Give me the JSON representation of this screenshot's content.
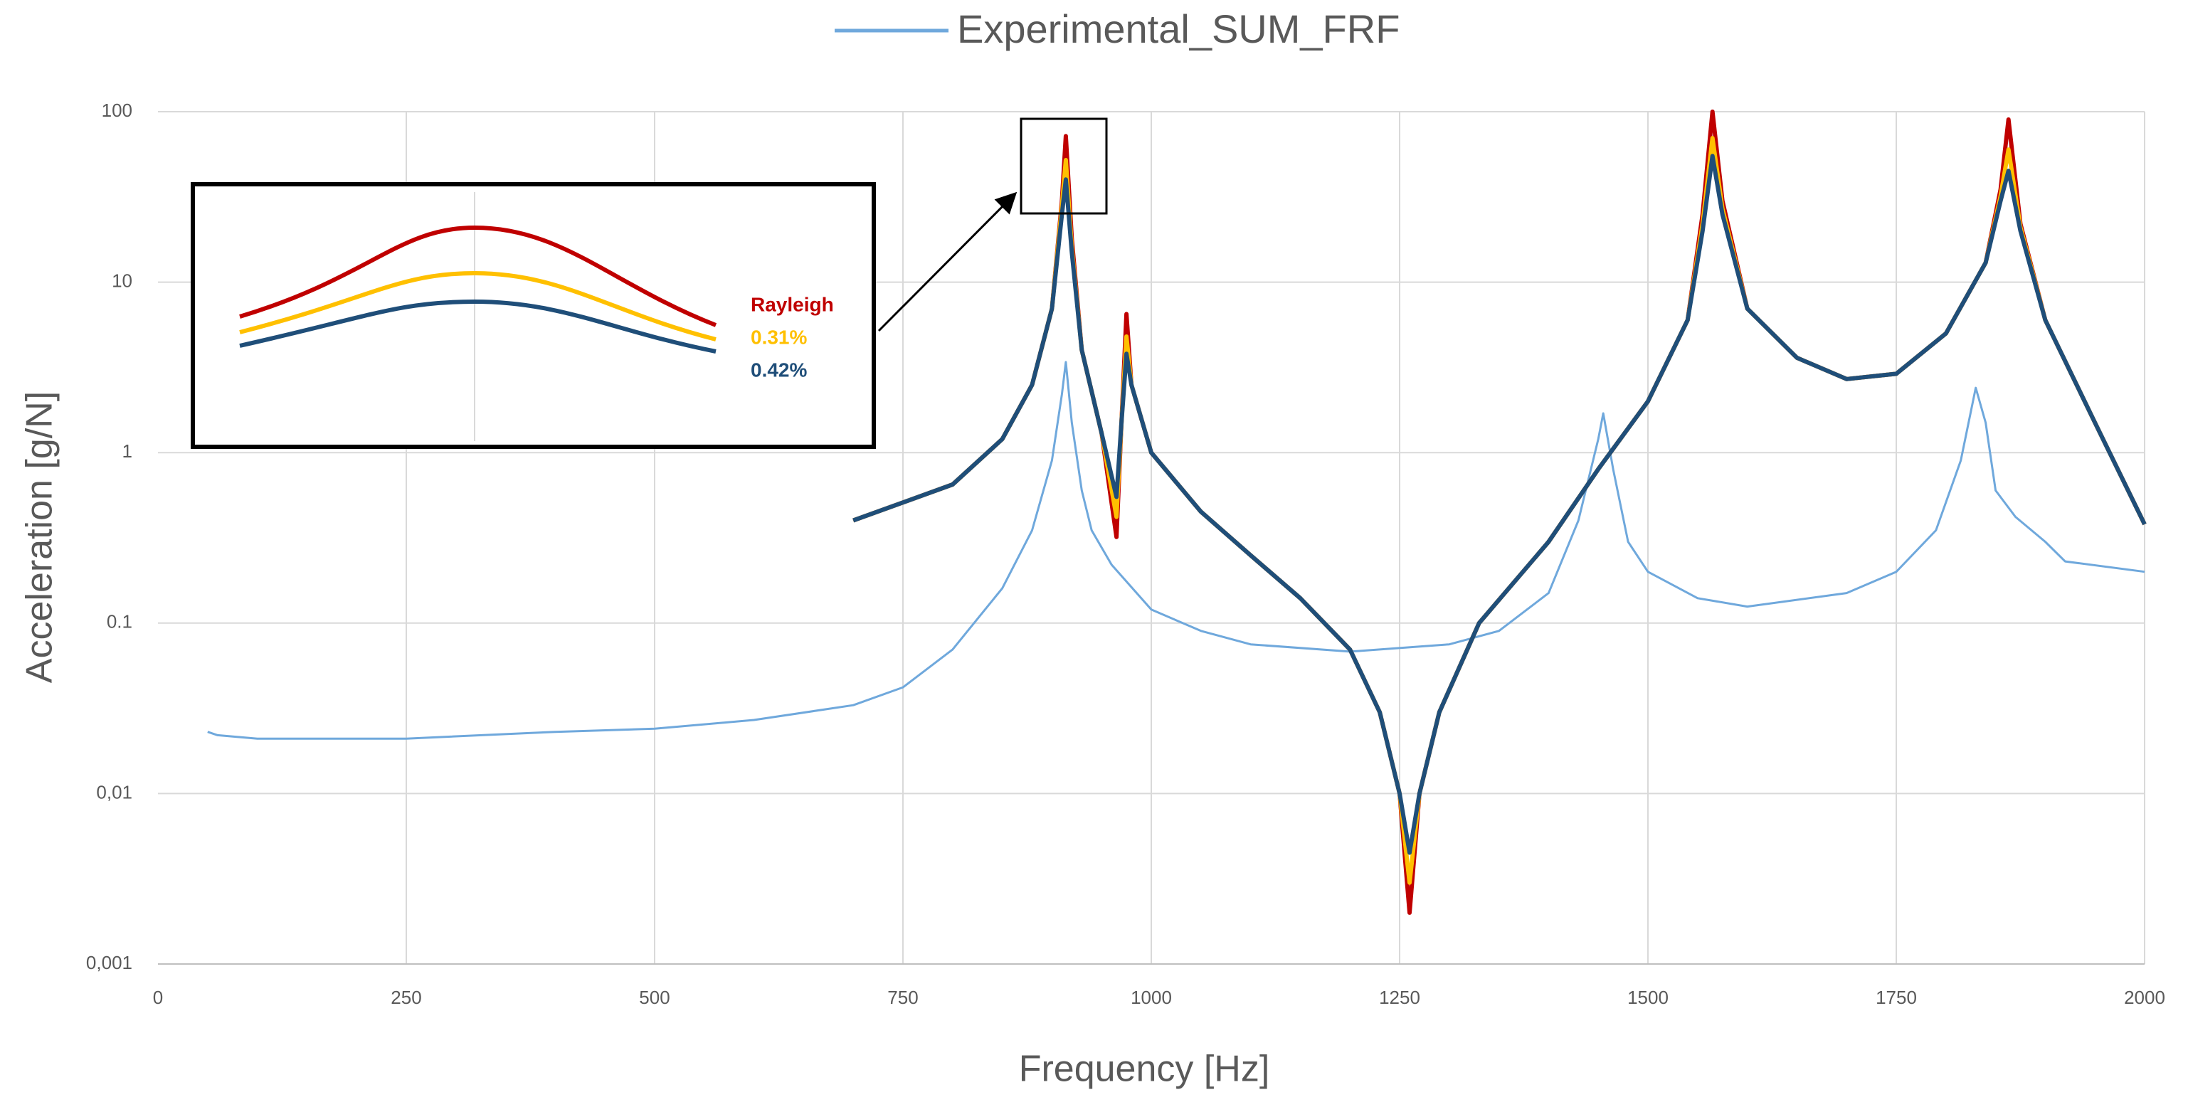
{
  "chart_data": {
    "type": "line",
    "xlabel": "Frequency [Hz]",
    "ylabel": "Acceleration [g/N]",
    "xlim": [
      0,
      2000
    ],
    "xticks": [
      0,
      250,
      500,
      750,
      1000,
      1250,
      1500,
      1750,
      2000
    ],
    "ylim": [
      0.001,
      100
    ],
    "yscale": "log",
    "yticks": [
      {
        "value": 0.001,
        "label": "0,001"
      },
      {
        "value": 0.01,
        "label": "0,01"
      },
      0.1,
      1,
      10,
      100
    ],
    "grid": true,
    "legend": "top",
    "series": [
      {
        "name": "Experimental_SUM_FRF",
        "color": "#6fa8dc",
        "x": [
          50,
          60,
          100,
          250,
          400,
          500,
          600,
          700,
          750,
          800,
          850,
          880,
          900,
          910,
          914,
          920,
          930,
          940,
          960,
          1000,
          1050,
          1100,
          1200,
          1300,
          1350,
          1400,
          1430,
          1450,
          1455,
          1465,
          1480,
          1500,
          1550,
          1600,
          1700,
          1750,
          1790,
          1815,
          1830,
          1840,
          1850,
          1870,
          1900,
          1920,
          2000
        ],
        "values": [
          0.023,
          0.022,
          0.021,
          0.021,
          0.023,
          0.024,
          0.027,
          0.033,
          0.042,
          0.07,
          0.16,
          0.35,
          0.9,
          2.2,
          3.4,
          1.5,
          0.6,
          0.35,
          0.22,
          0.12,
          0.09,
          0.075,
          0.068,
          0.075,
          0.09,
          0.15,
          0.4,
          1.2,
          1.7,
          0.8,
          0.3,
          0.2,
          0.14,
          0.125,
          0.15,
          0.2,
          0.35,
          0.9,
          2.4,
          1.5,
          0.6,
          0.42,
          0.3,
          0.23,
          0.2
        ]
      },
      {
        "name": "Rayleigh",
        "color": "#c00000",
        "x": [
          700,
          800,
          850,
          880,
          900,
          910,
          914,
          920,
          930,
          950,
          965,
          970,
          975,
          980,
          1000,
          1050,
          1100,
          1150,
          1200,
          1230,
          1250,
          1260,
          1270,
          1290,
          1330,
          1400,
          1450,
          1500,
          1540,
          1555,
          1565,
          1575,
          1600,
          1650,
          1700,
          1750,
          1800,
          1840,
          1855,
          1863,
          1875,
          1900,
          1950,
          2000
        ],
        "values": [
          0.4,
          0.65,
          1.2,
          2.5,
          7,
          30,
          72,
          18,
          4,
          1.3,
          0.32,
          1.5,
          6.5,
          2.5,
          1.0,
          0.45,
          0.25,
          0.14,
          0.07,
          0.03,
          0.01,
          0.002,
          0.01,
          0.03,
          0.1,
          0.3,
          0.8,
          2,
          6,
          25,
          100,
          30,
          7,
          3.6,
          2.7,
          2.9,
          5,
          13,
          35,
          90,
          22,
          6,
          1.5,
          0.38
        ]
      },
      {
        "name": "0.31%",
        "color": "#ffc000",
        "x": [
          700,
          800,
          850,
          880,
          900,
          910,
          914,
          920,
          930,
          950,
          965,
          970,
          975,
          980,
          1000,
          1050,
          1100,
          1150,
          1200,
          1230,
          1250,
          1260,
          1270,
          1290,
          1330,
          1400,
          1450,
          1500,
          1540,
          1555,
          1565,
          1575,
          1600,
          1650,
          1700,
          1750,
          1800,
          1840,
          1855,
          1863,
          1875,
          1900,
          1950,
          2000
        ],
        "values": [
          0.4,
          0.65,
          1.2,
          2.5,
          7,
          28,
          52,
          16,
          4,
          1.3,
          0.42,
          1.5,
          4.8,
          2.5,
          1.0,
          0.45,
          0.25,
          0.14,
          0.07,
          0.03,
          0.01,
          0.003,
          0.01,
          0.03,
          0.1,
          0.3,
          0.8,
          2,
          6,
          22,
          70,
          27,
          7,
          3.6,
          2.7,
          2.9,
          5,
          13,
          32,
          60,
          21,
          6,
          1.5,
          0.38
        ]
      },
      {
        "name": "0.42%",
        "color": "#1f4e79",
        "x": [
          700,
          800,
          850,
          880,
          900,
          910,
          914,
          920,
          930,
          950,
          965,
          970,
          975,
          980,
          1000,
          1050,
          1100,
          1150,
          1200,
          1230,
          1250,
          1260,
          1270,
          1290,
          1330,
          1400,
          1450,
          1500,
          1540,
          1555,
          1565,
          1575,
          1600,
          1650,
          1700,
          1750,
          1800,
          1840,
          1855,
          1863,
          1875,
          1900,
          1950,
          2000
        ],
        "values": [
          0.4,
          0.65,
          1.2,
          2.5,
          7,
          25,
          40,
          15,
          4,
          1.3,
          0.55,
          1.5,
          3.8,
          2.5,
          1.0,
          0.45,
          0.25,
          0.14,
          0.07,
          0.03,
          0.01,
          0.0045,
          0.01,
          0.03,
          0.1,
          0.3,
          0.8,
          2,
          6,
          20,
          55,
          25,
          7,
          3.6,
          2.7,
          2.9,
          5,
          13,
          30,
          45,
          20,
          6,
          1.5,
          0.38
        ]
      }
    ]
  }
}
